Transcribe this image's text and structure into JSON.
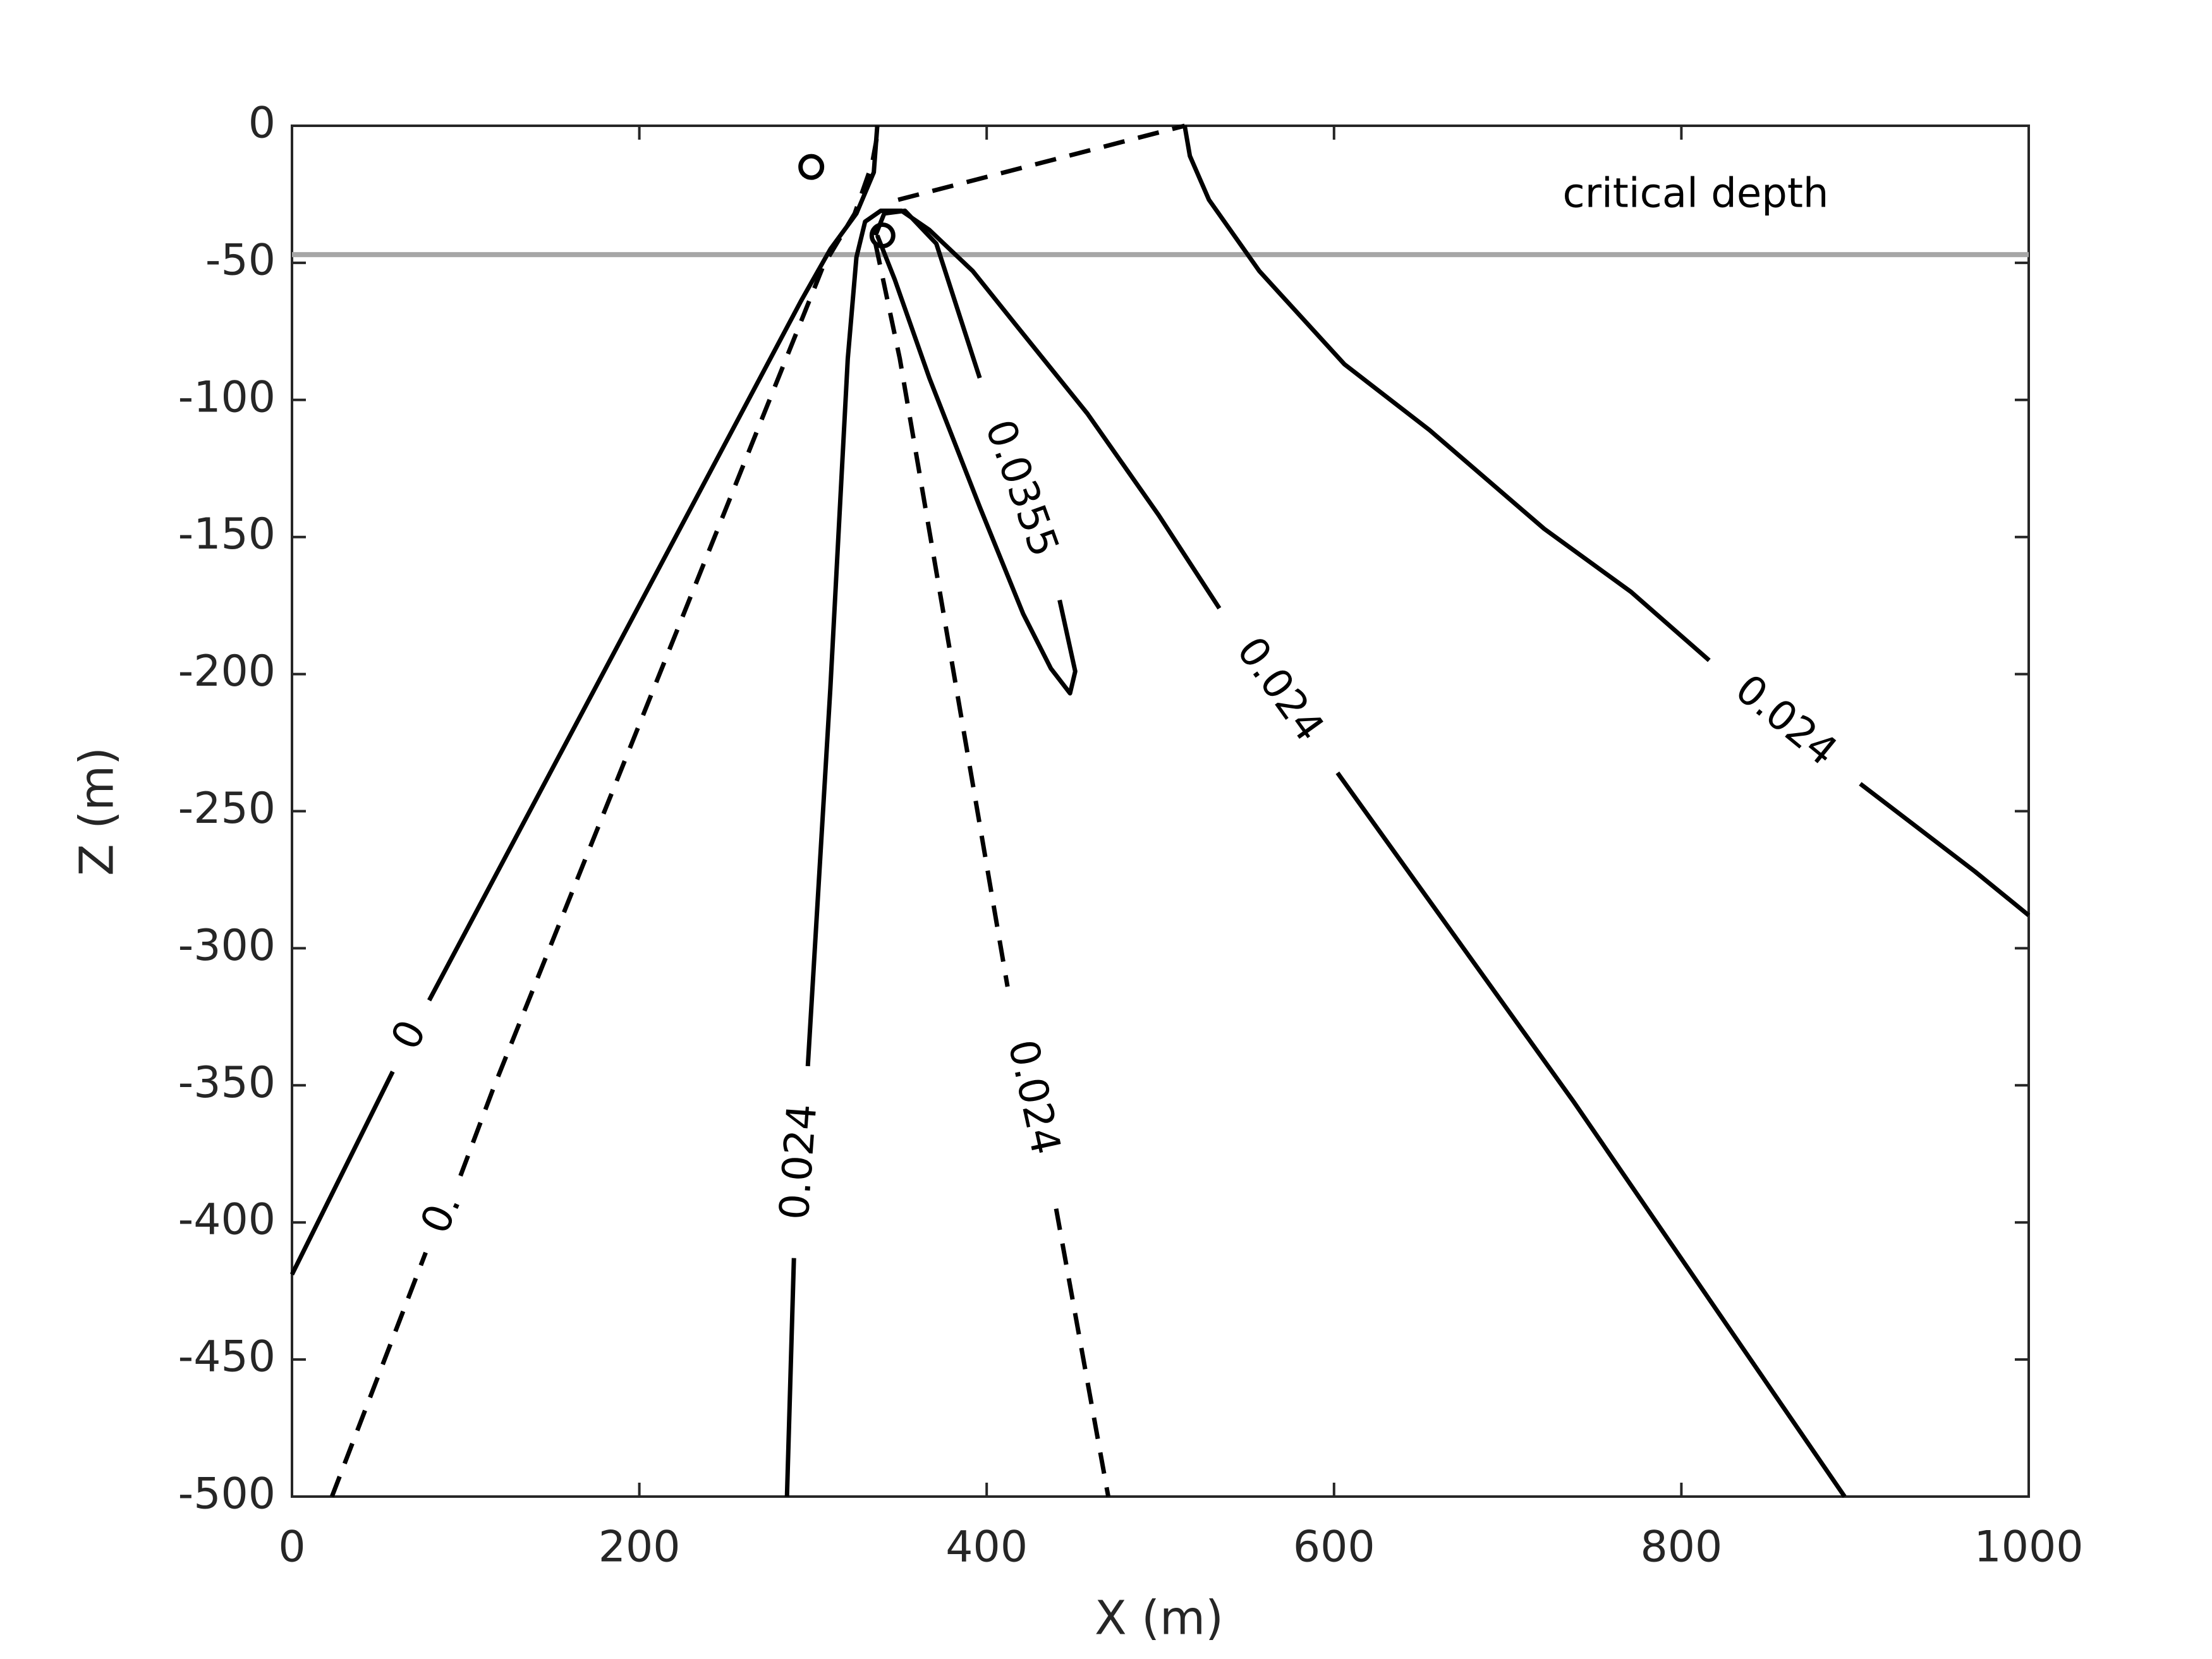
{
  "chart_data": {
    "type": "contour",
    "xlabel": "X (m)",
    "ylabel": "Z (m)",
    "xlim": [
      0,
      1000
    ],
    "ylim": [
      -500,
      0
    ],
    "xticks": [
      0,
      200,
      400,
      600,
      800,
      1000
    ],
    "yticks": [
      -500,
      -450,
      -400,
      -350,
      -300,
      -250,
      -200,
      -150,
      -100,
      -50,
      0
    ],
    "series": [
      {
        "style": "solid",
        "color": "#000000",
        "labels": [
          "0"
        ],
        "x": [
          0,
          58,
          null,
          79,
          293,
          310,
          325,
          335,
          337
        ],
        "y": [
          -419,
          -345,
          null,
          -319,
          -64,
          -45,
          -32,
          -17,
          0
        ]
      },
      {
        "style": "dashed",
        "color": "#000000",
        "labels": [
          "0."
        ],
        "x": [
          23,
          77,
          null,
          97,
          116,
          306,
          324,
          334,
          338
        ],
        "y": [
          -500,
          -411,
          null,
          -383,
          -351,
          -51,
          -32,
          -14,
          0
        ]
      },
      {
        "style": "solid",
        "color": "#000000",
        "labels": [
          "0.024",
          "0.024"
        ],
        "x": [
          285,
          289,
          null,
          297,
          310,
          320,
          325,
          330,
          339,
          351,
          367,
          392,
          416,
          458,
          499,
          534,
          null,
          602,
          738,
          894
        ],
        "y": [
          -500,
          -413,
          null,
          -343,
          -205,
          -85,
          -48,
          -35,
          -31,
          -31,
          -38,
          -53,
          -72,
          -105,
          -142,
          -176,
          null,
          -236,
          -356,
          -500
        ]
      },
      {
        "style": "dashed",
        "color": "#000000",
        "labels": [
          "0.024"
        ],
        "x": [
          336,
          350,
          412,
          null,
          440,
          470
        ],
        "y": [
          -43,
          -85,
          -314,
          null,
          -395,
          -500
        ]
      },
      {
        "style": "dashed",
        "color": "#000000",
        "x": [
          349,
          514
        ],
        "y": [
          -27,
          0
        ]
      },
      {
        "style": "solid",
        "color": "#000000",
        "labels": [
          "0.0355"
        ],
        "x": [
          336,
          341,
          353,
          371,
          396,
          null,
          442,
          451,
          448,
          437,
          421,
          396,
          367,
          347,
          337
        ],
        "y": [
          -40,
          -32,
          -31,
          -43,
          -92,
          null,
          -173,
          -199,
          -207,
          -198,
          -178,
          -139,
          -92,
          -56,
          -40
        ]
      },
      {
        "style": "solid",
        "color": "#000000",
        "labels": [
          "0.024"
        ],
        "x": [
          514,
          517,
          528,
          557,
          606,
          655,
          721,
          771,
          816,
          null,
          903,
          969,
          1000
        ],
        "y": [
          0,
          -11,
          -27,
          -53,
          -87,
          -111,
          -147,
          -170,
          -195,
          null,
          -240,
          -272,
          -288
        ]
      }
    ],
    "markers": {
      "x": [
        299,
        340
      ],
      "y": [
        -15,
        -40
      ],
      "color": "#000000"
    },
    "reference_line": {
      "y": -47,
      "label": "critical depth",
      "color": "#a6a6a6"
    }
  }
}
